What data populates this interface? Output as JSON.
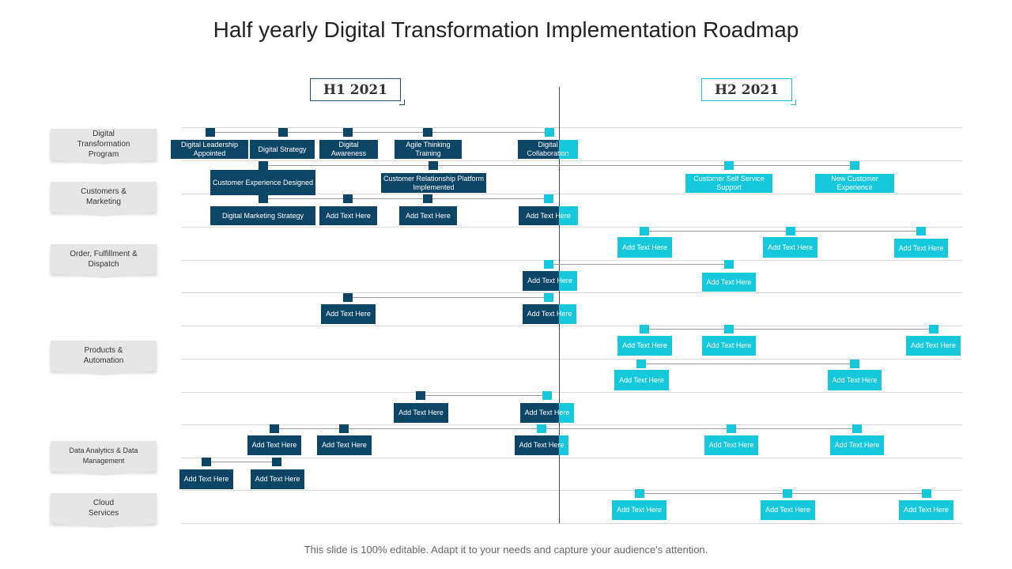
{
  "title": "Half yearly Digital Transformation Implementation Roadmap",
  "footer": "This slide is 100% editable. Adapt it to your needs and capture your audience's attention.",
  "colors": {
    "dark": "#0d4566",
    "cyan": "#16c8dc"
  },
  "periods": {
    "h1": "H1 2021",
    "h2": "H2 2021"
  },
  "categories": [
    {
      "label": "Digital\nTransformation\nProgram"
    },
    {
      "label": "Customers &\nMarketing"
    },
    {
      "label": "Order, Fulfillment  &\nDispatch"
    },
    {
      "label": "Products &\nAutomation"
    },
    {
      "label": "Data Analytics & Data\nManagement"
    },
    {
      "label": "Cloud\nServices"
    }
  ],
  "items": [
    {
      "text": "Digital Leadership Appointed",
      "color": "dark"
    },
    {
      "text": "Digital Strategy",
      "color": "dark"
    },
    {
      "text": "Digital Awareness",
      "color": "dark"
    },
    {
      "text": "Agile Thinking Training",
      "color": "dark"
    },
    {
      "text": "Digital Collaboration",
      "color": "split"
    },
    {
      "text": "Customer Experience Designed",
      "color": "dark"
    },
    {
      "text": "Customer Relationship Platform Implemented",
      "color": "dark"
    },
    {
      "text": "Customer Self Service Support",
      "color": "cyan"
    },
    {
      "text": "New Customer Experience",
      "color": "cyan"
    },
    {
      "text": "Digital Marketing Strategy",
      "color": "dark"
    },
    {
      "text": "Add Text Here",
      "color": "dark"
    },
    {
      "text": "Add Text Here",
      "color": "dark"
    },
    {
      "text": "Add Text Here",
      "color": "split"
    },
    {
      "text": "Add Text Here",
      "color": "cyan"
    },
    {
      "text": "Add Text Here",
      "color": "cyan"
    },
    {
      "text": "Add Text Here",
      "color": "cyan"
    },
    {
      "text": "Add Text Here",
      "color": "split"
    },
    {
      "text": "Add Text Here",
      "color": "cyan"
    },
    {
      "text": "Add Text Here",
      "color": "dark"
    },
    {
      "text": "Add Text Here",
      "color": "split"
    },
    {
      "text": "Add Text Here",
      "color": "cyan"
    },
    {
      "text": "Add Text Here",
      "color": "cyan"
    },
    {
      "text": "Add Text Here",
      "color": "cyan"
    },
    {
      "text": "Add Text Here",
      "color": "cyan"
    },
    {
      "text": "Add Text Here",
      "color": "cyan"
    },
    {
      "text": "Add Text Here",
      "color": "dark"
    },
    {
      "text": "Add Text Here",
      "color": "split"
    },
    {
      "text": "Add Text Here",
      "color": "dark"
    },
    {
      "text": "Add Text Here",
      "color": "dark"
    },
    {
      "text": "Add Text Here",
      "color": "split"
    },
    {
      "text": "Add Text Here",
      "color": "cyan"
    },
    {
      "text": "Add Text Here",
      "color": "cyan"
    },
    {
      "text": "Add Text Here",
      "color": "dark"
    },
    {
      "text": "Add Text Here",
      "color": "dark"
    },
    {
      "text": "Add Text Here",
      "color": "cyan"
    },
    {
      "text": "Add Text Here",
      "color": "cyan"
    },
    {
      "text": "Add Text Here",
      "color": "cyan"
    }
  ]
}
